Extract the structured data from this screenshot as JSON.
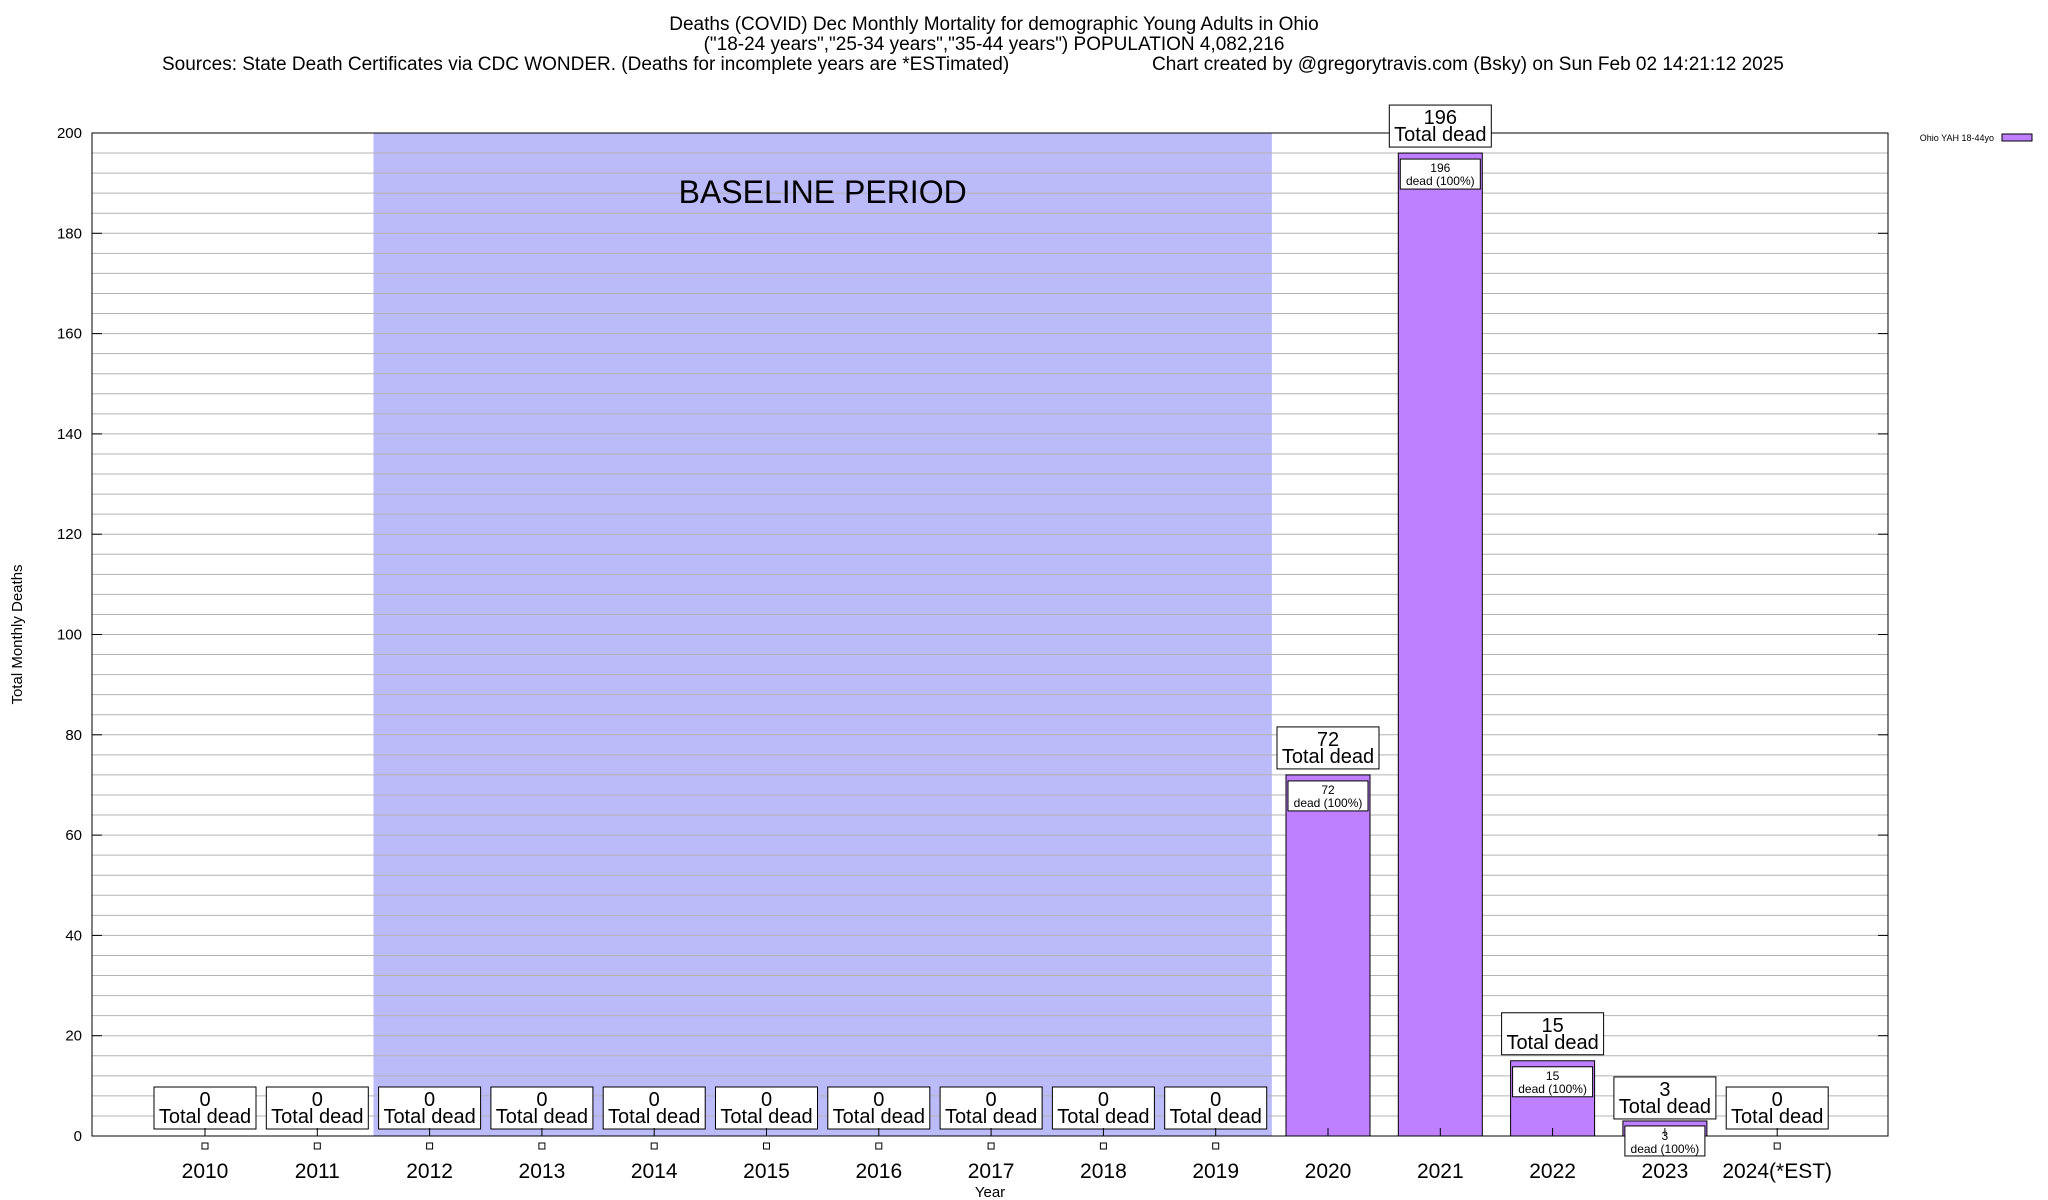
{
  "header": {
    "line1": "Deaths (COVID) Dec Monthly Mortality for demographic Young Adults in Ohio",
    "line2": "(\"18-24 years\",\"25-34 years\",\"35-44 years\") POPULATION 4,082,216",
    "sources": "Sources: State Death Certificates via CDC WONDER. (Deaths for incomplete years are *ESTimated)",
    "credit": "Chart created by @gregorytravis.com (Bsky) on Sun Feb 02 14:21:12 2025"
  },
  "chart_data": {
    "type": "bar",
    "title": "Deaths (COVID) Dec Monthly Mortality for demographic Young Adults in Ohio",
    "xlabel": "Year",
    "ylabel": "Total Monthly Deaths",
    "ylim": [
      0,
      200
    ],
    "y_ticks": [
      0,
      20,
      40,
      60,
      80,
      100,
      120,
      140,
      160,
      180,
      200
    ],
    "grid": true,
    "legend_position": "top-right",
    "baseline_label": "BASELINE PERIOD",
    "baseline_range": [
      "2012",
      "2019"
    ],
    "total_label": "Total dead",
    "inner_label_suffix": "dead (100%)",
    "categories": [
      "2010",
      "2011",
      "2012",
      "2013",
      "2014",
      "2015",
      "2016",
      "2017",
      "2018",
      "2019",
      "2020",
      "2021",
      "2022",
      "2023",
      "2024(*EST)"
    ],
    "series": [
      {
        "name": "Ohio YAH 18-44yo",
        "values": [
          0,
          0,
          0,
          0,
          0,
          0,
          0,
          0,
          0,
          0,
          72,
          196,
          15,
          3,
          0
        ]
      }
    ]
  },
  "colors": {
    "bar_fill": "#bf80ff",
    "baseline_fill": "#bbbbf9",
    "grid": "#b4b4b4",
    "axis": "#000000"
  }
}
